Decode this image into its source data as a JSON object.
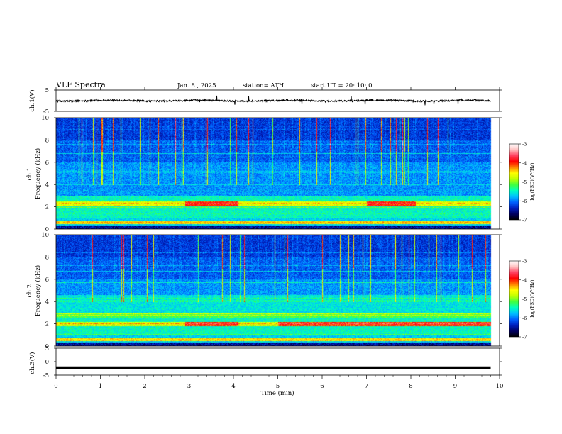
{
  "header": {
    "title": "VLF  Spectra",
    "date": "Jan.  8  ,  2025",
    "station": "station= ATH",
    "start": "start  UT  =    20: 10: 0"
  },
  "colors": {
    "colormap": [
      "#000000",
      "#000060",
      "#0020c0",
      "#0060ff",
      "#00c0ff",
      "#00ffc0",
      "#40ff40",
      "#c0ff00",
      "#ffff00",
      "#ff8000",
      "#ff0000",
      "#ff4060",
      "#ffc0c0",
      "#ffffff"
    ],
    "trace": "#000000",
    "axes": "#000000",
    "background": "#ffffff"
  },
  "chart_data": [
    {
      "type": "line",
      "name": "ch1-waveform",
      "ylabel": "ch.1(V)",
      "ylim": [
        -5,
        5
      ],
      "yticks": [
        5,
        -5
      ],
      "xlim": [
        0,
        10
      ],
      "x_end": 9.8,
      "baseline": 0,
      "amplitude_typical": 0.4
    },
    {
      "type": "heatmap",
      "name": "ch1-spectrogram",
      "ylabel_line1": "ch.1",
      "ylabel_line2": "Frequency  (kHz)",
      "ylim": [
        0,
        10
      ],
      "yticks": [
        0,
        2,
        4,
        6,
        8,
        10
      ],
      "xlim": [
        0,
        10
      ],
      "x_end": 9.8,
      "colorbar": {
        "label": "log(PSD)(V²/Hz)",
        "range": [
          -7,
          -3
        ],
        "ticks": [
          -3,
          -4,
          -5,
          -6,
          -7
        ]
      },
      "features": {
        "hot_band_khz": [
          2.1,
          2.5
        ],
        "hot_intervals_min": [
          [
            2.9,
            4.1
          ],
          [
            7.0,
            8.1
          ]
        ],
        "tone_khz": 0.6
      }
    },
    {
      "type": "heatmap",
      "name": "ch2-spectrogram",
      "ylabel_line1": "ch.2",
      "ylabel_line2": "Frequency  (kHz)",
      "ylim": [
        0,
        10
      ],
      "yticks": [
        0,
        2,
        4,
        6,
        8,
        10
      ],
      "xlim": [
        0,
        10
      ],
      "x_end": 9.8,
      "colorbar": {
        "label": "log(PSD)(V²/Hz)",
        "range": [
          -7,
          -3
        ],
        "ticks": [
          -3,
          -4,
          -5,
          -6,
          -7
        ]
      },
      "features": {
        "hot_band_khz": [
          1.8,
          2.2
        ],
        "hot_intervals_min": [
          [
            2.9,
            4.1
          ],
          [
            5.0,
            9.8
          ]
        ],
        "tone_khz": 0.6
      }
    },
    {
      "type": "line",
      "name": "ch3-waveform",
      "ylabel": "ch.3(V)",
      "ylim": [
        -5,
        5
      ],
      "yticks": [
        5,
        0,
        -5
      ],
      "xlim": [
        0,
        10
      ],
      "x_end": 9.8,
      "baseline": -2.2
    }
  ],
  "xaxis": {
    "label": "Time  (min)",
    "ticks": [
      0,
      1,
      2,
      3,
      4,
      5,
      6,
      7,
      8,
      9,
      10
    ]
  }
}
